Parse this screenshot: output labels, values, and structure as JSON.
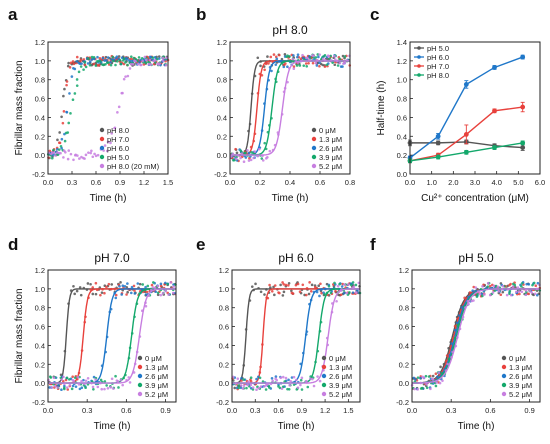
{
  "figure": {
    "colors": {
      "gray": "#555555",
      "red": "#e8413c",
      "blue": "#1f77c9",
      "green": "#13a86b",
      "violet": "#c77ee0"
    },
    "ylabel": "Fibrillar mass fraction",
    "xlabel": "Time (h)"
  },
  "chart_data": [
    {
      "panel": "a",
      "type": "scatter",
      "title": "",
      "xlabel": "Time (h)",
      "ylabel": "Fibrillar mass fraction",
      "xlim": [
        0.0,
        1.5
      ],
      "ylim": [
        -0.2,
        1.2
      ],
      "xticks": [
        "0.0",
        "0.3",
        "0.6",
        "0.9",
        "1.2",
        "1.5"
      ],
      "yticks": [
        "-0.2",
        "0.0",
        "0.2",
        "0.4",
        "0.6",
        "0.8",
        "1.0",
        "1.2"
      ],
      "legend_placement": "bottom-right",
      "series": [
        {
          "name": "pH 8.0",
          "color": "#555555",
          "midpoint": 0.18,
          "width": 0.03
        },
        {
          "name": "pH 7.0",
          "color": "#e8413c",
          "midpoint": 0.2,
          "width": 0.03
        },
        {
          "name": "pH 6.0",
          "color": "#1f77c9",
          "midpoint": 0.24,
          "width": 0.035
        },
        {
          "name": "pH 5.0",
          "color": "#13a86b",
          "midpoint": 0.3,
          "width": 0.05
        },
        {
          "name": "pH 8.0 (20 mM)",
          "color": "#c77ee0",
          "midpoint": 0.88,
          "width": 0.06
        }
      ]
    },
    {
      "panel": "b",
      "type": "line",
      "title": "pH 8.0",
      "xlabel": "Time (h)",
      "ylabel": "",
      "xlim": [
        0.0,
        0.8
      ],
      "ylim": [
        -0.2,
        1.2
      ],
      "xticks": [
        "0.0",
        "0.2",
        "0.4",
        "0.6",
        "0.8"
      ],
      "yticks": [
        "-0.2",
        "0.0",
        "0.2",
        "0.4",
        "0.6",
        "0.8",
        "1.0",
        "1.2"
      ],
      "legend_placement": "bottom-right",
      "series": [
        {
          "name": "0 μM",
          "color": "#555555",
          "midpoint": 0.14,
          "width": 0.012
        },
        {
          "name": "1.3 μM",
          "color": "#e8413c",
          "midpoint": 0.18,
          "width": 0.014
        },
        {
          "name": "2.6 μM",
          "color": "#1f77c9",
          "midpoint": 0.23,
          "width": 0.016
        },
        {
          "name": "3.9 μM",
          "color": "#13a86b",
          "midpoint": 0.28,
          "width": 0.018
        },
        {
          "name": "5.2 μM",
          "color": "#c77ee0",
          "midpoint": 0.35,
          "width": 0.02
        }
      ]
    },
    {
      "panel": "c",
      "type": "line",
      "title": "",
      "xlabel": "Cu²⁺ concentration (μM)",
      "ylabel": "Half-time (h)",
      "xlim": [
        0.0,
        6.0
      ],
      "ylim": [
        0.0,
        1.4
      ],
      "xticks": [
        "0.0",
        "1.0",
        "2.0",
        "3.0",
        "4.0",
        "5.0",
        "6.0"
      ],
      "yticks": [
        "0.0",
        "0.2",
        "0.4",
        "0.6",
        "0.8",
        "1.0",
        "1.2",
        "1.4"
      ],
      "legend_placement": "top-left",
      "x": [
        0.0,
        1.3,
        2.6,
        3.9,
        5.2
      ],
      "series": [
        {
          "name": "pH 5.0",
          "color": "#555555",
          "values": [
            0.33,
            0.33,
            0.34,
            0.3,
            0.28
          ],
          "errors": [
            0.03,
            0.02,
            0.02,
            0.02,
            0.03
          ]
        },
        {
          "name": "pH 6.0",
          "color": "#1f77c9",
          "values": [
            0.17,
            0.4,
            0.95,
            1.13,
            1.24
          ],
          "errors": [
            0.02,
            0.03,
            0.04,
            0.02,
            0.02
          ]
        },
        {
          "name": "pH 7.0",
          "color": "#e8413c",
          "values": [
            0.14,
            0.2,
            0.42,
            0.67,
            0.71
          ],
          "errors": [
            0.02,
            0.02,
            0.1,
            0.02,
            0.05
          ]
        },
        {
          "name": "pH 8.0",
          "color": "#13a86b",
          "values": [
            0.14,
            0.18,
            0.23,
            0.28,
            0.33
          ],
          "errors": [
            0.02,
            0.02,
            0.02,
            0.02,
            0.02
          ]
        }
      ]
    },
    {
      "panel": "d",
      "type": "line",
      "title": "pH 7.0",
      "xlabel": "Time (h)",
      "ylabel": "Fibrillar mass fraction",
      "xlim": [
        0.0,
        0.98
      ],
      "ylim": [
        -0.2,
        1.2
      ],
      "xticks": [
        "0.0",
        "0.3",
        "0.6",
        "0.9"
      ],
      "xtick_values": [
        0.0,
        0.3,
        0.6,
        0.9
      ],
      "yticks": [
        "-0.2",
        "0.0",
        "0.2",
        "0.4",
        "0.6",
        "0.8",
        "1.0",
        "1.2"
      ],
      "legend_placement": "bottom-right",
      "series": [
        {
          "name": "0 μM",
          "color": "#555555",
          "midpoint": 0.14,
          "width": 0.012
        },
        {
          "name": "1.3 μM",
          "color": "#e8413c",
          "midpoint": 0.27,
          "width": 0.016
        },
        {
          "name": "2.6 μM",
          "color": "#1f77c9",
          "midpoint": 0.45,
          "width": 0.02
        },
        {
          "name": "3.9 μM",
          "color": "#13a86b",
          "midpoint": 0.64,
          "width": 0.022
        },
        {
          "name": "5.2 μM",
          "color": "#c77ee0",
          "midpoint": 0.7,
          "width": 0.025
        }
      ]
    },
    {
      "panel": "e",
      "type": "line",
      "title": "pH 6.0",
      "xlabel": "Time (h)",
      "ylabel": "",
      "xlim": [
        0.0,
        1.65
      ],
      "ylim": [
        -0.2,
        1.2
      ],
      "xticks": [
        "0.0",
        "0.3",
        "0.6",
        "0.9",
        "1.2",
        "1.5"
      ],
      "xtick_values": [
        0.0,
        0.3,
        0.6,
        0.9,
        1.2,
        1.5
      ],
      "yticks": [
        "-0.2",
        "0.0",
        "0.2",
        "0.4",
        "0.6",
        "0.8",
        "1.0",
        "1.2"
      ],
      "legend_placement": "bottom-right",
      "series": [
        {
          "name": "0 μM",
          "color": "#555555",
          "midpoint": 0.18,
          "width": 0.02
        },
        {
          "name": "1.3 μM",
          "color": "#e8413c",
          "midpoint": 0.4,
          "width": 0.02
        },
        {
          "name": "2.6 μM",
          "color": "#1f77c9",
          "midpoint": 0.95,
          "width": 0.035
        },
        {
          "name": "3.9 μM",
          "color": "#13a86b",
          "midpoint": 1.12,
          "width": 0.035
        },
        {
          "name": "5.2 μM",
          "color": "#c77ee0",
          "midpoint": 1.24,
          "width": 0.04
        }
      ]
    },
    {
      "panel": "f",
      "type": "line",
      "title": "pH 5.0",
      "xlabel": "Time (h)",
      "ylabel": "",
      "xlim": [
        0.0,
        0.98
      ],
      "ylim": [
        -0.2,
        1.2
      ],
      "xticks": [
        "0.0",
        "0.3",
        "0.6",
        "0.9"
      ],
      "xtick_values": [
        0.0,
        0.3,
        0.6,
        0.9
      ],
      "yticks": [
        "-0.2",
        "0.0",
        "0.2",
        "0.4",
        "0.6",
        "0.8",
        "1.0",
        "1.2"
      ],
      "legend_placement": "bottom-right",
      "series": [
        {
          "name": "0 μM",
          "color": "#555555",
          "midpoint": 0.31,
          "width": 0.045
        },
        {
          "name": "1.3 μM",
          "color": "#e8413c",
          "midpoint": 0.32,
          "width": 0.045
        },
        {
          "name": "2.6 μM",
          "color": "#1f77c9",
          "midpoint": 0.33,
          "width": 0.045
        },
        {
          "name": "3.9 μM",
          "color": "#13a86b",
          "midpoint": 0.34,
          "width": 0.045
        },
        {
          "name": "5.2 μM",
          "color": "#c77ee0",
          "midpoint": 0.35,
          "width": 0.045
        }
      ]
    }
  ]
}
